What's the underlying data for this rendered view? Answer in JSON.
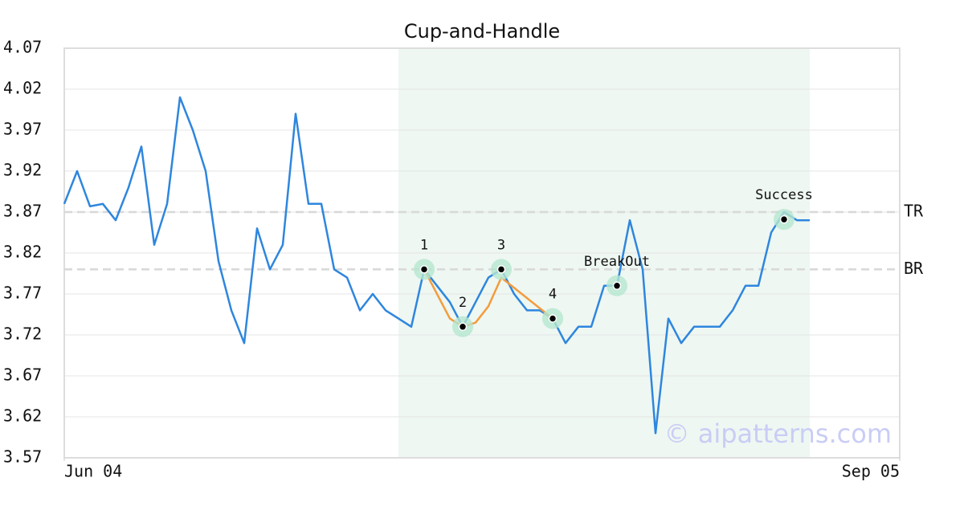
{
  "chart_data": {
    "type": "line",
    "title": "Cup-and-Handle",
    "x": [
      0,
      1,
      2,
      3,
      4,
      5,
      6,
      7,
      8,
      9,
      10,
      11,
      12,
      13,
      14,
      15,
      16,
      17,
      18,
      19,
      20,
      21,
      22,
      23,
      24,
      25,
      26,
      27,
      28,
      29,
      30,
      31,
      32,
      33,
      34,
      35,
      36,
      37,
      38,
      39,
      40,
      41,
      42,
      43,
      44,
      45,
      46,
      47,
      48,
      49,
      50,
      51,
      52,
      53,
      54,
      55,
      56,
      57,
      58
    ],
    "series": [
      {
        "color": "#2e86de",
        "values": [
          3.88,
          3.92,
          3.877,
          3.88,
          3.86,
          3.9,
          3.95,
          3.83,
          3.88,
          4.01,
          3.97,
          3.92,
          3.81,
          3.75,
          3.71,
          3.85,
          3.8,
          3.83,
          3.99,
          3.88,
          3.88,
          3.8,
          3.79,
          3.75,
          3.77,
          3.75,
          3.74,
          3.73,
          3.8,
          3.78,
          3.76,
          3.73,
          3.76,
          3.79,
          3.8,
          3.77,
          3.75,
          3.75,
          3.74,
          3.71,
          3.73,
          3.73,
          3.78,
          3.78,
          3.86,
          3.8,
          3.6,
          3.74,
          3.71,
          3.73,
          3.73,
          3.73,
          3.75,
          3.78,
          3.78,
          3.845,
          3.87,
          3.86,
          3.86
        ]
      }
    ],
    "pattern_line": {
      "color": "#f39c3c",
      "x": [
        28,
        30,
        31,
        32,
        33,
        34,
        38
      ],
      "values": [
        3.8,
        3.74,
        3.73,
        3.735,
        3.755,
        3.79,
        3.74
      ]
    },
    "points": [
      {
        "label": "1",
        "x": 28,
        "value": 3.8
      },
      {
        "label": "2",
        "x": 31,
        "value": 3.73
      },
      {
        "label": "3",
        "x": 34,
        "value": 3.8
      },
      {
        "label": "4",
        "x": 38,
        "value": 3.74
      },
      {
        "label": "BreakOut",
        "x": 43,
        "value": 3.78
      },
      {
        "label": "Success",
        "x": 56,
        "value": 3.861
      }
    ],
    "levels": [
      {
        "label": "TR",
        "value": 3.87
      },
      {
        "label": "BR",
        "value": 3.8
      }
    ],
    "highlight_x": [
      26,
      58
    ],
    "watermark": "© aipatterns.com",
    "xlim": [
      0,
      65
    ],
    "xticks": [
      {
        "value": 0,
        "label": "Jun 04"
      },
      {
        "value": 65,
        "label": "Sep 05"
      }
    ],
    "ylim": [
      3.57,
      4.07
    ],
    "yticks": [
      3.57,
      3.62,
      3.67,
      3.72,
      3.77,
      3.82,
      3.87,
      3.92,
      3.97,
      4.02,
      4.07
    ],
    "grid": true
  }
}
